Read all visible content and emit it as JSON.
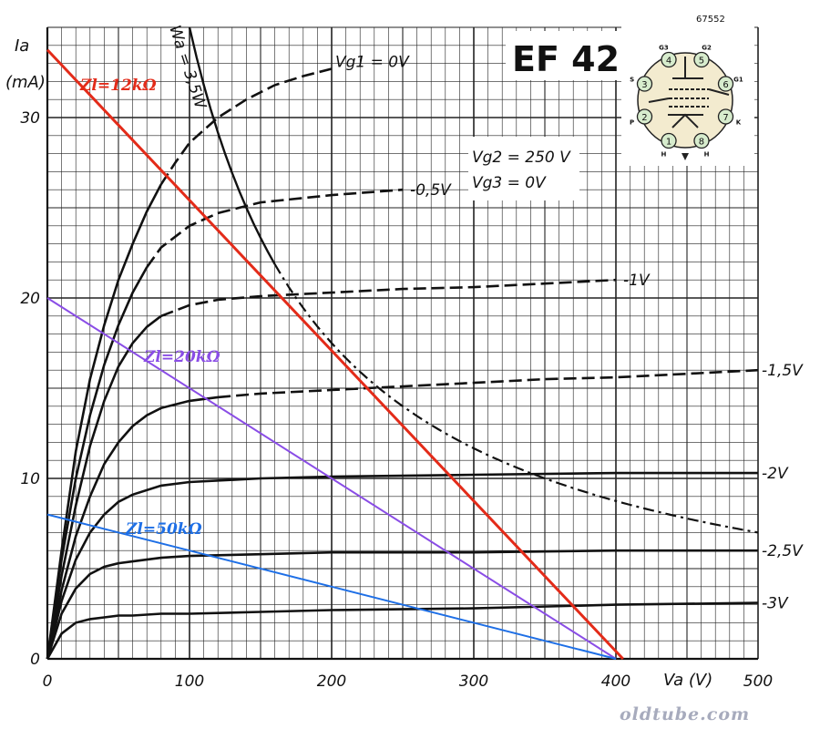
{
  "chart_data": {
    "type": "line",
    "tube_name": "EF 42",
    "code": "67552",
    "watermark": "oldtube.com",
    "y_axis_label": "Ia",
    "y_axis_unit": "(mA)",
    "x_axis_label": "Va (V)",
    "xlim": [
      0,
      500
    ],
    "ylim": [
      0,
      35
    ],
    "x_ticks": [
      0,
      100,
      200,
      300,
      400,
      500
    ],
    "x_tick_labels": [
      "0",
      "100",
      "200",
      "300",
      "400",
      "500"
    ],
    "y_ticks": [
      0,
      10,
      20,
      30
    ],
    "y_tick_labels": [
      "0",
      "10",
      "20",
      "30"
    ],
    "grid": true,
    "conditions": [
      "Vg2 = 250 V",
      "Vg3 = 0V"
    ],
    "series": [
      {
        "name": "Vg1=0V",
        "label": "Vg1 = 0V",
        "style": "solid-then-dashed",
        "x": [
          0,
          5,
          10,
          20,
          30,
          40,
          50,
          60,
          70,
          80,
          90,
          100,
          120,
          140,
          160,
          180,
          200
        ],
        "y": [
          0,
          3,
          6,
          11.5,
          15.5,
          18.5,
          21,
          23,
          24.8,
          26.3,
          27.5,
          28.6,
          30,
          31,
          31.8,
          32.3,
          32.7
        ]
      },
      {
        "name": "-0.5V",
        "label": "-0,5V",
        "style": "solid-then-dashed",
        "x": [
          0,
          5,
          10,
          20,
          30,
          40,
          50,
          60,
          70,
          80,
          100,
          120,
          150,
          200,
          250
        ],
        "y": [
          0,
          2.8,
          5.5,
          10,
          13.5,
          16.3,
          18.5,
          20.3,
          21.7,
          22.8,
          24,
          24.7,
          25.3,
          25.7,
          26
        ]
      },
      {
        "name": "-1V",
        "label": "-1V",
        "style": "solid-then-dashed",
        "x": [
          0,
          5,
          10,
          20,
          30,
          40,
          50,
          60,
          70,
          80,
          100,
          120,
          150,
          200,
          250,
          300,
          350,
          400
        ],
        "y": [
          0,
          2.3,
          4.6,
          8.5,
          11.8,
          14.3,
          16.2,
          17.5,
          18.4,
          19,
          19.6,
          19.9,
          20.1,
          20.3,
          20.5,
          20.6,
          20.8,
          21
        ]
      },
      {
        "name": "-1.5V",
        "label": "-1,5V",
        "style": "solid-then-dashed",
        "x": [
          0,
          10,
          20,
          30,
          40,
          50,
          60,
          70,
          80,
          100,
          120,
          150,
          200,
          250,
          300,
          350,
          400,
          450,
          500
        ],
        "y": [
          0,
          3.8,
          6.8,
          9,
          10.8,
          12,
          12.9,
          13.5,
          13.9,
          14.3,
          14.5,
          14.7,
          14.9,
          15.1,
          15.3,
          15.5,
          15.6,
          15.8,
          16
        ]
      },
      {
        "name": "-2V",
        "label": "-2V",
        "style": "solid",
        "x": [
          0,
          10,
          20,
          30,
          40,
          50,
          60,
          80,
          100,
          150,
          200,
          300,
          400,
          500
        ],
        "y": [
          0,
          3.2,
          5.5,
          7,
          8,
          8.7,
          9.1,
          9.6,
          9.8,
          10,
          10.1,
          10.2,
          10.3,
          10.3
        ]
      },
      {
        "name": "-2.5V",
        "label": "-2,5V",
        "style": "solid",
        "x": [
          0,
          10,
          20,
          30,
          40,
          50,
          60,
          80,
          100,
          150,
          200,
          300,
          400,
          500
        ],
        "y": [
          0,
          2.5,
          3.9,
          4.7,
          5.1,
          5.3,
          5.4,
          5.6,
          5.7,
          5.8,
          5.9,
          5.9,
          6,
          6
        ]
      },
      {
        "name": "-3V",
        "label": "-3V",
        "style": "solid",
        "x": [
          0,
          10,
          20,
          30,
          40,
          50,
          60,
          80,
          100,
          150,
          200,
          300,
          400,
          500
        ],
        "y": [
          0,
          1.4,
          2.0,
          2.2,
          2.3,
          2.4,
          2.4,
          2.5,
          2.5,
          2.6,
          2.7,
          2.8,
          3.0,
          3.1
        ]
      }
    ],
    "power_limit": {
      "label": "Wa = 3,5W",
      "watts": 3.5,
      "x_start": 100,
      "x_solid_end": 160,
      "x_end": 500
    },
    "load_lines": [
      {
        "name": "12k",
        "label": "Zl=12kΩ",
        "color": "#e32b19",
        "x": [
          0,
          405
        ],
        "y": [
          33.75,
          0
        ]
      },
      {
        "name": "20k",
        "label": "Zl=20kΩ",
        "color": "#8a4de6",
        "x": [
          0,
          400
        ],
        "y": [
          20,
          0
        ]
      },
      {
        "name": "50k",
        "label": "Zl=50kΩ",
        "color": "#1e6fe6",
        "x": [
          0,
          400
        ],
        "y": [
          8,
          0
        ]
      }
    ],
    "pinout": [
      {
        "pin": "1",
        "name": "H"
      },
      {
        "pin": "2",
        "name": "P"
      },
      {
        "pin": "3",
        "name": "S"
      },
      {
        "pin": "4",
        "name": "G3"
      },
      {
        "pin": "5",
        "name": "G2"
      },
      {
        "pin": "6",
        "name": "G1"
      },
      {
        "pin": "7",
        "name": "K"
      },
      {
        "pin": "8",
        "name": "H"
      }
    ]
  }
}
